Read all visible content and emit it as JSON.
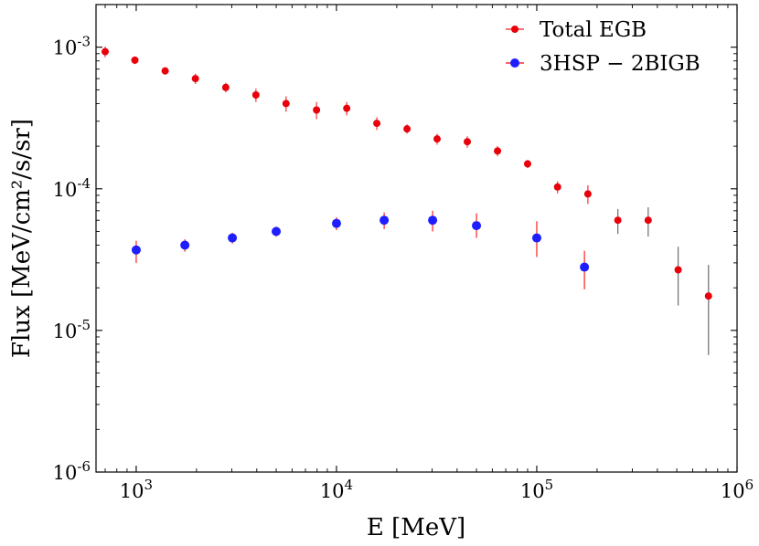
{
  "chart_data": {
    "type": "scatter",
    "xscale": "log",
    "yscale": "log",
    "xlabel": "E [MeV]",
    "ylabel": "Flux [MeV/cm²/s/sr]",
    "xlim": [
      630,
      1000000
    ],
    "ylim": [
      1e-06,
      0.002
    ],
    "x_ticks": [
      {
        "value": 1000,
        "base": "10",
        "exp": "3"
      },
      {
        "value": 10000,
        "base": "10",
        "exp": "4"
      },
      {
        "value": 100000,
        "base": "10",
        "exp": "5"
      },
      {
        "value": 1000000,
        "base": "10",
        "exp": "6"
      }
    ],
    "y_ticks": [
      {
        "value": 1e-06,
        "base": "10",
        "exp": "-6"
      },
      {
        "value": 1e-05,
        "base": "10",
        "exp": "-5"
      },
      {
        "value": 0.0001,
        "base": "10",
        "exp": "-4"
      },
      {
        "value": 0.001,
        "base": "10",
        "exp": "-3"
      }
    ],
    "legend_position": "top-right",
    "series": [
      {
        "name": "Total EGB",
        "color": "#e8000b",
        "bar_color": "#ff4040",
        "marker_size": 4,
        "points": [
          {
            "x": 700,
            "y": 0.00093,
            "err_lo": 8e-05,
            "err_hi": 8e-05
          },
          {
            "x": 985,
            "y": 0.00081,
            "err_lo": 5e-05,
            "err_hi": 5e-05
          },
          {
            "x": 1395,
            "y": 0.00068,
            "err_lo": 4e-05,
            "err_hi": 4e-05
          },
          {
            "x": 1975,
            "y": 0.0006,
            "err_lo": 5e-05,
            "err_hi": 5e-05
          },
          {
            "x": 2800,
            "y": 0.00052,
            "err_lo": 4e-05,
            "err_hi": 4e-05
          },
          {
            "x": 3960,
            "y": 0.00046,
            "err_lo": 5e-05,
            "err_hi": 5e-05
          },
          {
            "x": 5600,
            "y": 0.0004,
            "err_lo": 5e-05,
            "err_hi": 5e-05
          },
          {
            "x": 7950,
            "y": 0.00036,
            "err_lo": 5e-05,
            "err_hi": 5e-05
          },
          {
            "x": 11250,
            "y": 0.00037,
            "err_lo": 4e-05,
            "err_hi": 4e-05
          },
          {
            "x": 15900,
            "y": 0.00029,
            "err_lo": 3e-05,
            "err_hi": 3e-05
          },
          {
            "x": 22500,
            "y": 0.000265,
            "err_lo": 2e-05,
            "err_hi": 2e-05
          },
          {
            "x": 31800,
            "y": 0.000225,
            "err_lo": 2e-05,
            "err_hi": 2e-05
          },
          {
            "x": 45000,
            "y": 0.000215,
            "err_lo": 2e-05,
            "err_hi": 2e-05
          },
          {
            "x": 63700,
            "y": 0.000185,
            "err_lo": 1.5e-05,
            "err_hi": 1.5e-05
          },
          {
            "x": 90000,
            "y": 0.00015,
            "err_lo": 1e-05,
            "err_hi": 1e-05
          },
          {
            "x": 127000,
            "y": 0.000103,
            "err_lo": 1e-05,
            "err_hi": 1e-05
          },
          {
            "x": 180000,
            "y": 9.2e-05,
            "err_lo": 1.4e-05,
            "err_hi": 1.4e-05
          },
          {
            "x": 254000,
            "y": 6e-05,
            "err_lo": 1.2e-05,
            "err_hi": 1.2e-05
          },
          {
            "x": 360000,
            "y": 6e-05,
            "err_lo": 1.4e-05,
            "err_hi": 1.4e-05
          },
          {
            "x": 508000,
            "y": 2.68e-05,
            "err_lo": 1.18e-05,
            "err_hi": 1.22e-05
          },
          {
            "x": 720000,
            "y": 1.75e-05,
            "err_lo": 1.08e-05,
            "err_hi": 1.15e-05
          }
        ]
      },
      {
        "name": "3HSP − 2BIGB",
        "color": "#1e1eff",
        "bar_color": "#ff3030",
        "marker_size": 5,
        "points": [
          {
            "x": 1000,
            "y": 3.7e-05,
            "err_lo": 7e-06,
            "err_hi": 6e-06
          },
          {
            "x": 1750,
            "y": 4e-05,
            "err_lo": 4e-06,
            "err_hi": 4e-06
          },
          {
            "x": 3020,
            "y": 4.5e-05,
            "err_lo": 4e-06,
            "err_hi": 4e-06
          },
          {
            "x": 5000,
            "y": 5e-05,
            "err_lo": 4e-06,
            "err_hi": 4e-06
          },
          {
            "x": 10000,
            "y": 5.7e-05,
            "err_lo": 6e-06,
            "err_hi": 6e-06
          },
          {
            "x": 17300,
            "y": 6e-05,
            "err_lo": 8e-06,
            "err_hi": 8e-06
          },
          {
            "x": 30200,
            "y": 6e-05,
            "err_lo": 1e-05,
            "err_hi": 1e-05
          },
          {
            "x": 50000,
            "y": 5.5e-05,
            "err_lo": 1e-05,
            "err_hi": 1.2e-05
          },
          {
            "x": 100000,
            "y": 4.5e-05,
            "err_lo": 1.2e-05,
            "err_hi": 1.4e-05
          },
          {
            "x": 173000,
            "y": 2.8e-05,
            "err_lo": 8.5e-06,
            "err_hi": 8.5e-06
          }
        ]
      }
    ]
  }
}
